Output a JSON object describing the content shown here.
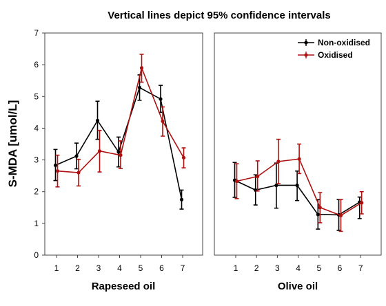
{
  "chart_data": {
    "type": "line",
    "title": "Vertical lines depict 95% confidence intervals",
    "ylabel": "S-MDA [umol/L]",
    "ylim": [
      0,
      7
    ],
    "yticks": [
      "0",
      "1",
      "2",
      "3",
      "4",
      "5",
      "6",
      "7"
    ],
    "legend_position": "top-right",
    "colors": {
      "Non-oxidised": "#000000",
      "Oxidised": "#b01010"
    },
    "panels": [
      {
        "xlabel": "Rapeseed oil",
        "categories": [
          "1",
          "2",
          "3",
          "4",
          "5",
          "6",
          "7"
        ],
        "series": [
          {
            "name": "Non-oxidised",
            "values": [
              2.83,
              3.12,
              4.24,
              3.25,
              5.28,
              4.92,
              1.75
            ],
            "lower": [
              2.35,
              2.72,
              3.65,
              2.78,
              4.88,
              4.5,
              1.45
            ],
            "upper": [
              3.33,
              3.53,
              4.85,
              3.72,
              5.68,
              5.35,
              2.05
            ]
          },
          {
            "name": "Oxidised",
            "values": [
              2.65,
              2.6,
              3.28,
              3.15,
              5.9,
              4.22,
              3.07
            ],
            "lower": [
              2.15,
              2.18,
              2.62,
              2.73,
              5.45,
              3.75,
              2.75
            ],
            "upper": [
              3.15,
              3.02,
              3.93,
              3.6,
              6.33,
              4.67,
              3.38
            ]
          }
        ]
      },
      {
        "xlabel": "Olive oil",
        "categories": [
          "1",
          "2",
          "3",
          "4",
          "5",
          "6",
          "7"
        ],
        "series": [
          {
            "name": "Non-oxidised",
            "values": [
              2.36,
              2.05,
              2.2,
              2.2,
              1.28,
              1.27,
              1.67
            ],
            "lower": [
              1.82,
              1.58,
              1.48,
              1.72,
              0.82,
              0.78,
              1.15
            ],
            "upper": [
              2.92,
              2.53,
              2.9,
              2.65,
              1.75,
              1.75,
              1.83
            ]
          },
          {
            "name": "Oxidised",
            "values": [
              2.33,
              2.48,
              2.95,
              3.03,
              1.5,
              1.25,
              1.65
            ],
            "lower": [
              1.78,
              2.02,
              2.25,
              2.57,
              1.02,
              0.75,
              1.3
            ],
            "upper": [
              2.88,
              2.97,
              3.65,
              3.5,
              1.97,
              1.75,
              2.0
            ]
          }
        ]
      }
    ]
  }
}
